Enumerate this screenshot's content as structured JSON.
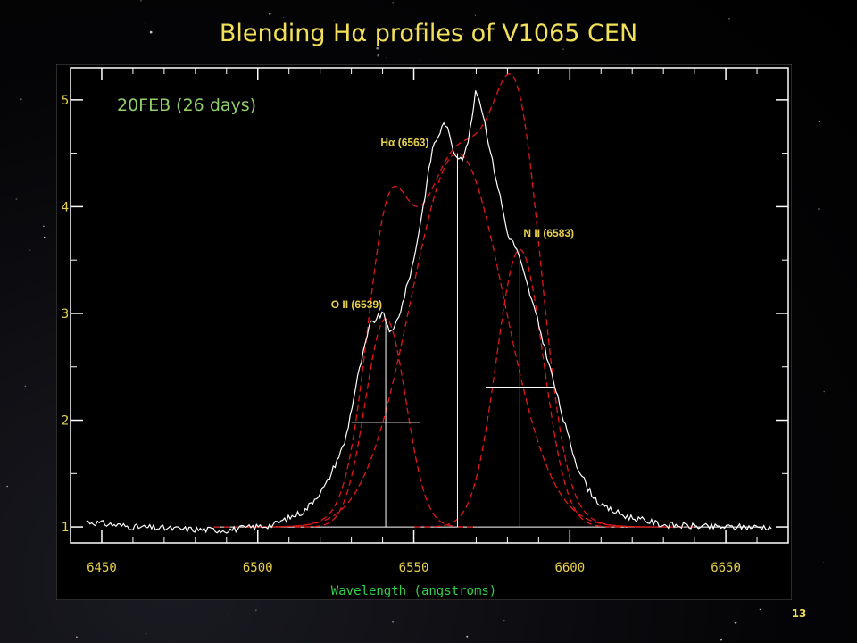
{
  "slide": {
    "title": "Blending Hα profiles of V1065 CEN",
    "page_number": "13"
  },
  "colors": {
    "background": "#000000",
    "plot_background": "#000000",
    "plot_frame": "#555555",
    "axis": "#ffffff",
    "tick_labels": "#e8d04a",
    "xlabel": "#2fd24a",
    "annotation": "#e8d04a",
    "epoch_label": "#8fcf6a",
    "spectrum": "#ffffff",
    "fit": "#e01818"
  },
  "chart_data": {
    "type": "line",
    "title": "",
    "epoch_label": "20FEB (26 days)",
    "xlabel": "Wavelength (angstroms)",
    "ylabel": "",
    "xlim": [
      6440,
      6670
    ],
    "ylim": [
      0.85,
      5.3
    ],
    "x_ticks": [
      6450,
      6500,
      6550,
      6600,
      6650
    ],
    "x_tick_labels": [
      "6450",
      "6500",
      "6550",
      "6600",
      "6650"
    ],
    "y_ticks": [
      1,
      2,
      3,
      4,
      5
    ],
    "y_tick_labels": [
      "1",
      "2",
      "3",
      "4",
      "5"
    ],
    "continuum": 1.0,
    "series": [
      {
        "role": "observed-spectrum",
        "x": [
          6445,
          6460,
          6475,
          6490,
          6505,
          6515,
          6522,
          6528,
          6532,
          6536,
          6540,
          6543,
          6546,
          6550,
          6553,
          6556,
          6560,
          6563,
          6566,
          6568,
          6570,
          6572,
          6575,
          6578,
          6580,
          6583,
          6586,
          6590,
          6594,
          6598,
          6602,
          6606,
          6610,
          6618,
          6630,
          6645,
          6665
        ],
        "y": [
          1.05,
          1.0,
          0.98,
          0.97,
          1.02,
          1.15,
          1.4,
          1.8,
          2.4,
          2.9,
          3.0,
          2.8,
          3.05,
          3.5,
          4.0,
          4.55,
          4.8,
          4.5,
          4.45,
          4.7,
          5.1,
          4.9,
          4.45,
          4.05,
          3.75,
          3.6,
          3.3,
          2.9,
          2.45,
          2.0,
          1.6,
          1.35,
          1.2,
          1.1,
          1.02,
          1.0,
          1.0
        ]
      }
    ],
    "gaussian_components": [
      {
        "label": "O II (6539)",
        "center": 6541,
        "peak": 2.95,
        "sigma": 6.5,
        "fwhm_level": 1.98,
        "fwhm_halfwidth": 11
      },
      {
        "label": "Hα (6563)",
        "center": 6564,
        "peak": 4.5,
        "sigma": 15,
        "fwhm_level": null,
        "fwhm_halfwidth": null
      },
      {
        "label": "N II (6583)",
        "center": 6584,
        "peak": 3.6,
        "sigma": 7.5,
        "fwhm_level": 2.31,
        "fwhm_halfwidth": 11
      }
    ]
  }
}
